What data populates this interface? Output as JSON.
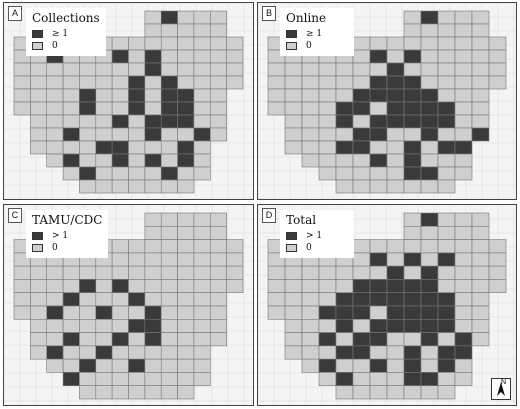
{
  "colors": {
    "active": "#3a3a3a",
    "zero": "#cfcfcf",
    "background": "#f4f4f4",
    "border": "#777777"
  },
  "north_arrow": {
    "label": "N"
  },
  "panels": [
    {
      "id": "A",
      "title": "Collections",
      "legend": [
        {
          "label": "≥ 1",
          "color": "#3a3a3a"
        },
        {
          "label": "0",
          "color": "#cfcfcf"
        }
      ],
      "dark": [
        "3-2",
        "3-6",
        "3-8",
        "4-8",
        "5-7",
        "5-9",
        "6-4",
        "6-7",
        "6-9",
        "6-10",
        "7-4",
        "7-7",
        "7-9",
        "7-10",
        "8-6",
        "8-8",
        "8-9",
        "8-10",
        "9-3",
        "9-8",
        "9-11",
        "10-5",
        "10-6",
        "10-10",
        "11-3",
        "11-6",
        "11-8",
        "11-10",
        "12-4",
        "12-9",
        "0-9"
      ]
    },
    {
      "id": "B",
      "title": "Online",
      "legend": [
        {
          "label": "≥ 1",
          "color": "#3a3a3a"
        },
        {
          "label": "0",
          "color": "#cfcfcf"
        }
      ],
      "dark": [
        "0-9",
        "3-6",
        "3-8",
        "4-7",
        "5-6",
        "5-7",
        "5-8",
        "6-5",
        "6-6",
        "6-7",
        "6-8",
        "6-9",
        "7-4",
        "7-5",
        "7-7",
        "7-8",
        "7-9",
        "7-10",
        "8-4",
        "8-6",
        "8-7",
        "8-8",
        "8-9",
        "8-10",
        "9-5",
        "9-6",
        "9-9",
        "10-4",
        "10-5",
        "10-8",
        "10-10",
        "11-6",
        "11-8",
        "12-8",
        "12-9",
        "9-12",
        "10-11"
      ]
    },
    {
      "id": "C",
      "title": "TAMU/CDC",
      "legend": [
        {
          "label": "> 1",
          "color": "#3a3a3a"
        },
        {
          "label": "0",
          "color": "#cfcfcf"
        }
      ],
      "dark": [
        "5-4",
        "5-6",
        "6-3",
        "6-7",
        "7-2",
        "7-5",
        "7-8",
        "8-7",
        "8-8",
        "9-3",
        "9-6",
        "9-8",
        "10-2",
        "10-5",
        "11-4",
        "11-7",
        "12-3"
      ]
    },
    {
      "id": "D",
      "title": "Total",
      "legend": [
        {
          "label": "> 1",
          "color": "#3a3a3a"
        },
        {
          "label": "0",
          "color": "#cfcfcf"
        }
      ],
      "dark": [
        "0-9",
        "2-2",
        "3-6",
        "3-8",
        "3-10",
        "4-7",
        "4-9",
        "5-5",
        "5-6",
        "5-7",
        "5-8",
        "5-9",
        "6-4",
        "6-5",
        "6-6",
        "6-7",
        "6-8",
        "6-9",
        "6-10",
        "7-3",
        "7-4",
        "7-5",
        "7-7",
        "7-8",
        "7-9",
        "7-10",
        "8-4",
        "8-6",
        "8-7",
        "8-8",
        "8-9",
        "8-10",
        "9-3",
        "9-5",
        "9-6",
        "9-9",
        "9-11",
        "10-4",
        "10-5",
        "10-8",
        "10-10",
        "10-11",
        "11-3",
        "11-6",
        "11-8",
        "11-10",
        "12-4",
        "12-8",
        "12-9"
      ]
    }
  ]
}
